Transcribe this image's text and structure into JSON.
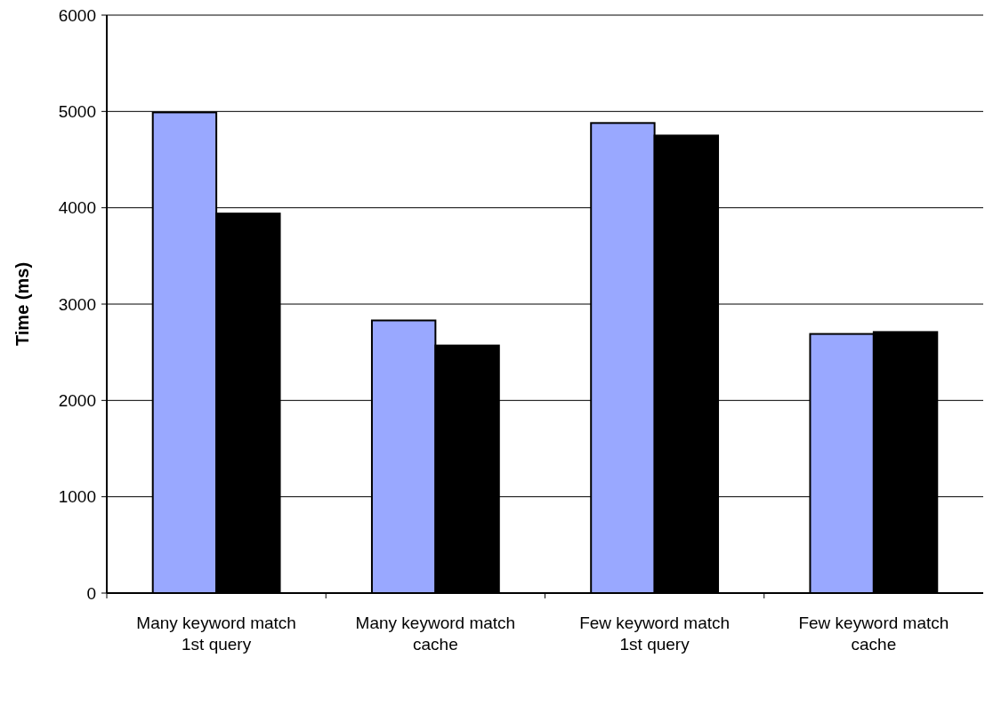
{
  "chart_data": {
    "type": "bar",
    "ylabel": "Time (ms)",
    "categories": [
      "Many keyword match\n1st query",
      "Many keyword match\ncache",
      "Few keyword match\n1st query",
      "Few keyword match\ncache"
    ],
    "series": [
      {
        "color": "#99a8ff",
        "values": [
          4990,
          2830,
          4880,
          2690
        ]
      },
      {
        "color": "#000000",
        "values": [
          3940,
          2570,
          4750,
          2710
        ]
      }
    ],
    "ylim": [
      0,
      6000
    ],
    "yticks": [
      0,
      1000,
      2000,
      3000,
      4000,
      5000,
      6000
    ],
    "grid": "y"
  }
}
